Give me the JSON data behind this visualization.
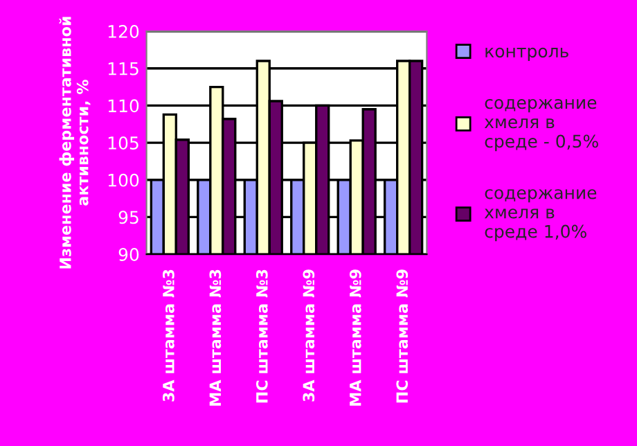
{
  "chart_data": {
    "type": "bar",
    "ylabel": "Изменение ферментативной активности, %",
    "categories": [
      "3А штамма №3",
      "МА штамма №3",
      "ПС штамма №3",
      "3А штамма №9",
      "МА штамма №9",
      "ПС штамма №9"
    ],
    "series": [
      {
        "name": "контроль",
        "color": "#9999ff",
        "values": [
          100,
          100,
          100,
          100,
          100,
          100
        ]
      },
      {
        "name": "содержание хмеля в среде - 0,5%",
        "color": "#ffffcc",
        "values": [
          108.8,
          112.5,
          116,
          105,
          105.3,
          116
        ]
      },
      {
        "name": "содержание хмеля в среде 1,0%",
        "color": "#660066",
        "values": [
          105.4,
          108.2,
          110.6,
          110,
          109.5,
          116
        ]
      }
    ],
    "ylim": [
      90,
      120
    ],
    "yticks": [
      90,
      95,
      100,
      105,
      110,
      115,
      120
    ],
    "grid": "y",
    "legend": "right"
  }
}
